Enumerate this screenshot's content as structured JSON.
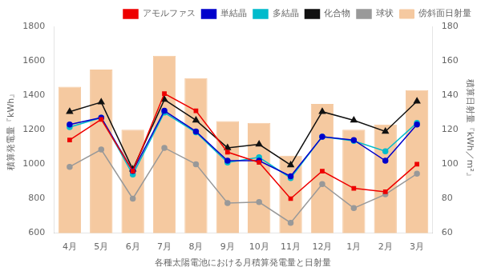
{
  "chart_data": {
    "type": "bar",
    "categories": [
      "4月",
      "5月",
      "6月",
      "7月",
      "8月",
      "9月",
      "10月",
      "11月",
      "12月",
      "1月",
      "2月",
      "3月"
    ],
    "series": [
      {
        "name": "傍斜面日射量",
        "type": "bar",
        "color": "#f5c9a0",
        "values": [
          1450,
          1550,
          1200,
          1630,
          1500,
          1250,
          1240,
          1050,
          1350,
          1200,
          1230,
          1430
        ]
      },
      {
        "name": "アモルファス",
        "type": "line",
        "color": "#ee0000",
        "marker": "square",
        "values": [
          1140,
          1260,
          960,
          1410,
          1310,
          1070,
          1010,
          800,
          960,
          860,
          840,
          1000
        ]
      },
      {
        "name": "単結晶",
        "type": "line",
        "color": "#0000cc",
        "marker": "circle",
        "values": [
          1230,
          1270,
          960,
          1310,
          1190,
          1020,
          1020,
          930,
          1160,
          1140,
          1020,
          1230
        ]
      },
      {
        "name": "多結晶",
        "type": "line",
        "color": "#00bbcc",
        "marker": "circle",
        "values": [
          1215,
          1270,
          940,
          1300,
          1185,
          1010,
          1040,
          920,
          1160,
          1135,
          1075,
          1240
        ]
      },
      {
        "name": "化合物",
        "type": "line",
        "color": "#111111",
        "marker": "triangle",
        "values": [
          1305,
          1360,
          970,
          1375,
          1255,
          1095,
          1115,
          995,
          1305,
          1255,
          1190,
          1365
        ]
      },
      {
        "name": "球状",
        "type": "line",
        "color": "#999999",
        "marker": "circle",
        "values": [
          985,
          1085,
          800,
          1095,
          1000,
          775,
          780,
          660,
          885,
          745,
          825,
          945
        ]
      }
    ],
    "x_label": "各種太陽電池における月積算発電量と日射量",
    "y_label": "積算発電量『kWh』",
    "y2_label": "積算日射量『kWh／m²』",
    "ylim": [
      600,
      1800
    ],
    "yticks": [
      600,
      800,
      1000,
      1200,
      1400,
      1600,
      1800
    ],
    "y2lim": [
      60,
      180
    ],
    "y2ticks": [
      60,
      80,
      100,
      120,
      140,
      160,
      180
    ],
    "grid": false,
    "legend": "upper right"
  }
}
